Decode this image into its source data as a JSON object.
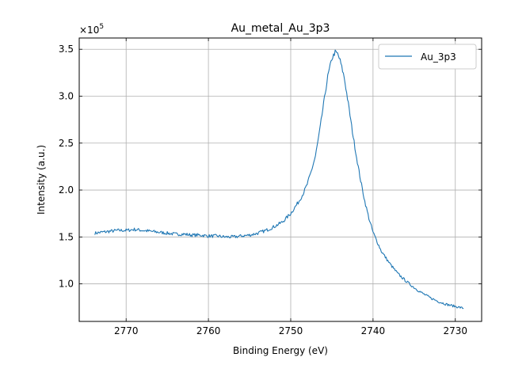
{
  "chart_data": {
    "type": "line",
    "title": "Au_metal_Au_3p3",
    "xlabel": "Binding Energy (eV)",
    "ylabel": "Intensity (a.u.)",
    "x_reversed": true,
    "xlim": [
      2775.7,
      2726.8
    ],
    "ylim": [
      0.6,
      3.62
    ],
    "y_multiplier_label": "×10",
    "y_multiplier_exponent": "5",
    "xticks": [
      2770,
      2760,
      2750,
      2740,
      2730
    ],
    "xtick_labels": [
      "2770",
      "2760",
      "2750",
      "2740",
      "2730"
    ],
    "yticks": [
      1.0,
      1.5,
      2.0,
      2.5,
      3.0,
      3.5
    ],
    "ytick_labels": [
      "1.0",
      "1.5",
      "2.0",
      "2.5",
      "3.0",
      "3.5"
    ],
    "grid": true,
    "legend_position": "top-right",
    "color": "#1f77b4",
    "series": [
      {
        "name": "Au_3p3",
        "x": [
          2773.8,
          2773.0,
          2772.0,
          2771.0,
          2770.0,
          2769.0,
          2768.0,
          2767.0,
          2766.0,
          2765.0,
          2764.0,
          2763.0,
          2762.0,
          2761.0,
          2760.0,
          2759.0,
          2758.0,
          2757.0,
          2756.0,
          2755.0,
          2754.0,
          2753.0,
          2752.0,
          2751.0,
          2750.0,
          2749.0,
          2748.5,
          2748.0,
          2747.5,
          2747.0,
          2746.5,
          2746.0,
          2745.5,
          2745.0,
          2744.6,
          2744.3,
          2744.0,
          2743.5,
          2743.0,
          2742.5,
          2742.0,
          2741.5,
          2741.0,
          2740.5,
          2740.0,
          2739.5,
          2739.0,
          2738.0,
          2737.0,
          2736.0,
          2735.0,
          2734.0,
          2733.0,
          2732.0,
          2731.0,
          2730.0,
          2729.0
        ],
        "y": [
          1.54,
          1.55,
          1.56,
          1.57,
          1.57,
          1.58,
          1.57,
          1.56,
          1.55,
          1.54,
          1.53,
          1.53,
          1.52,
          1.52,
          1.51,
          1.51,
          1.5,
          1.5,
          1.51,
          1.52,
          1.54,
          1.57,
          1.61,
          1.66,
          1.75,
          1.88,
          1.96,
          2.06,
          2.2,
          2.36,
          2.62,
          2.92,
          3.21,
          3.4,
          3.47,
          3.45,
          3.38,
          3.2,
          2.92,
          2.62,
          2.35,
          2.1,
          1.88,
          1.7,
          1.55,
          1.45,
          1.35,
          1.22,
          1.11,
          1.03,
          0.96,
          0.9,
          0.85,
          0.81,
          0.78,
          0.76,
          0.74
        ]
      }
    ]
  }
}
